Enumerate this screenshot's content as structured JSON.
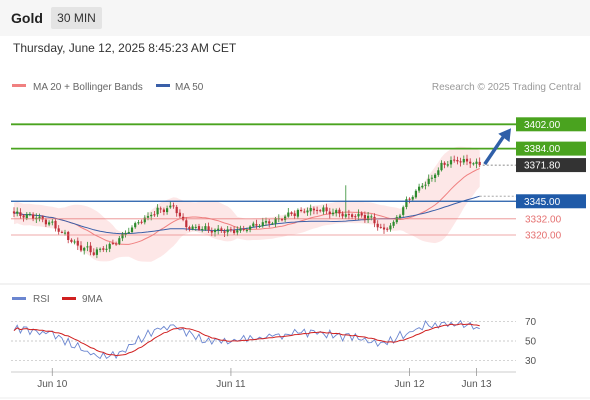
{
  "header": {
    "title": "Gold",
    "interval": "30 MIN"
  },
  "timestamp": "Thursday, June 12, 2025 8:45:23 AM CET",
  "legend": {
    "bb_label": "MA 20 + Bollinger Bands",
    "ma50_label": "MA 50",
    "source": "Research © 2025 Trading Central"
  },
  "rsi_legend": {
    "rsi_label": "RSI",
    "ma_label": "9MA"
  },
  "colors": {
    "candle_up": "#2e8b2e",
    "candle_down": "#c0303a",
    "ma20": "#f08080",
    "band_fill": "#fde4e4",
    "ma50": "#3a5fa8",
    "resistance": "#4aa31f",
    "support": "#1f5aa8",
    "minor": "#e57070",
    "current": "#333333",
    "arrow": "#2f5fa8",
    "rsi": "#6b86d0",
    "rsi_ma": "#d02020"
  },
  "chart_data": [
    {
      "type": "candlestick",
      "title": "Gold 30 MIN",
      "x_ticks": [
        "Jun 10",
        "Jun 11",
        "Jun 12",
        "Jun 13"
      ],
      "ylim": [
        3283,
        3420
      ],
      "current_price": "3371.80",
      "levels": [
        {
          "price": 3402.0,
          "label": "3402.00",
          "kind": "resistance"
        },
        {
          "price": 3384.0,
          "label": "3384.00",
          "kind": "resistance"
        },
        {
          "price": 3345.0,
          "label": "3345.00",
          "kind": "support"
        },
        {
          "price": 3332.0,
          "label": "3332.00",
          "kind": "minor"
        },
        {
          "price": 3320.0,
          "label": "3320.00",
          "kind": "minor"
        }
      ],
      "forecast_target": 3402.0,
      "anchors": [
        [
          0,
          3336
        ],
        [
          6,
          3334
        ],
        [
          12,
          3328
        ],
        [
          20,
          3312
        ],
        [
          25,
          3307
        ],
        [
          31,
          3313
        ],
        [
          38,
          3328
        ],
        [
          45,
          3338
        ],
        [
          50,
          3341
        ],
        [
          54,
          3327
        ],
        [
          60,
          3324
        ],
        [
          66,
          3323
        ],
        [
          72,
          3324
        ],
        [
          78,
          3328
        ],
        [
          85,
          3334
        ],
        [
          92,
          3339
        ],
        [
          97,
          3338
        ],
        [
          102,
          3336
        ],
        [
          107,
          3334
        ],
        [
          112,
          3333
        ],
        [
          116,
          3323
        ],
        [
          119,
          3329
        ],
        [
          123,
          3345
        ],
        [
          127,
          3355
        ],
        [
          131,
          3363
        ],
        [
          134,
          3372
        ],
        [
          137,
          3375
        ],
        [
          140,
          3375
        ],
        [
          144,
          3373
        ],
        [
          146,
          3371.8
        ]
      ]
    },
    {
      "type": "line",
      "title": "RSI",
      "series": [
        {
          "name": "RSI"
        },
        {
          "name": "9MA"
        }
      ],
      "y_ticks": [
        70,
        50,
        30
      ],
      "ylim": [
        20,
        80
      ],
      "anchors": [
        [
          0,
          63
        ],
        [
          6,
          61
        ],
        [
          12,
          57
        ],
        [
          18,
          47
        ],
        [
          24,
          38
        ],
        [
          28,
          33
        ],
        [
          32,
          36
        ],
        [
          38,
          50
        ],
        [
          45,
          62
        ],
        [
          50,
          66
        ],
        [
          54,
          60
        ],
        [
          58,
          52
        ],
        [
          64,
          49
        ],
        [
          70,
          50
        ],
        [
          76,
          53
        ],
        [
          82,
          56
        ],
        [
          88,
          58
        ],
        [
          94,
          59
        ],
        [
          100,
          56
        ],
        [
          106,
          54
        ],
        [
          112,
          50
        ],
        [
          116,
          46
        ],
        [
          120,
          53
        ],
        [
          124,
          60
        ],
        [
          128,
          65
        ],
        [
          132,
          67
        ],
        [
          136,
          68
        ],
        [
          140,
          68
        ],
        [
          144,
          65
        ],
        [
          146,
          63
        ]
      ]
    }
  ]
}
